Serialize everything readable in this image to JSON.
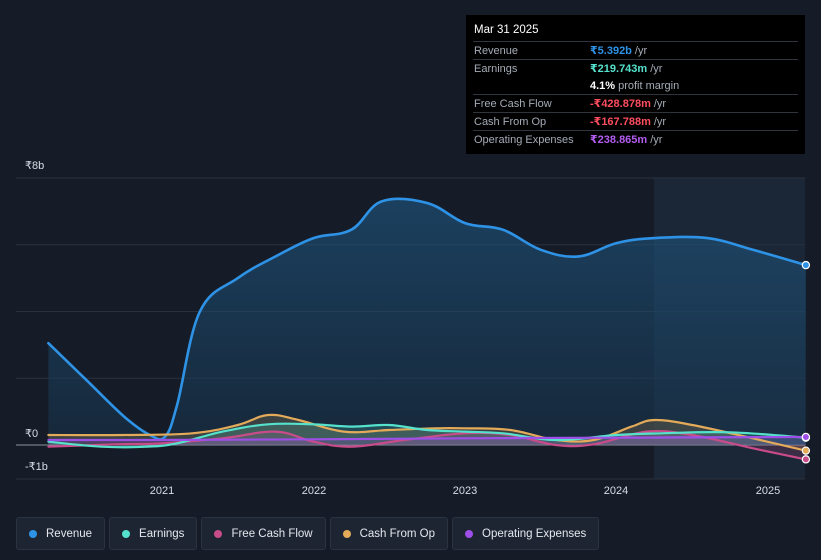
{
  "tooltip": {
    "date": "Mar 31 2025",
    "rows": [
      {
        "label": "Revenue",
        "value": "₹5.392b",
        "unit": "/yr"
      },
      {
        "label": "Earnings",
        "value": "₹219.743m",
        "unit": "/yr"
      },
      {
        "label": "",
        "value": "4.1%",
        "unit": "profit margin"
      },
      {
        "label": "Free Cash Flow",
        "value": "-₹428.878m",
        "unit": "/yr"
      },
      {
        "label": "Cash From Op",
        "value": "-₹167.788m",
        "unit": "/yr"
      },
      {
        "label": "Operating Expenses",
        "value": "₹238.865m",
        "unit": "/yr"
      }
    ]
  },
  "legend": [
    "Revenue",
    "Earnings",
    "Free Cash Flow",
    "Cash From Op",
    "Operating Expenses"
  ],
  "colors": {
    "revenue": "#2e93e6",
    "earnings": "#55e2cd",
    "fcf": "#c84b8a",
    "cfo": "#e3aa5a",
    "opex": "#9d4fe8"
  },
  "chart_data": {
    "type": "area",
    "ylim": [
      -1,
      8
    ],
    "y_tick_labels": [
      "₹8b",
      "₹0",
      "-₹1b"
    ],
    "x_tick_labels": [
      "2021",
      "2022",
      "2023",
      "2024",
      "2025"
    ],
    "x_unit": "year",
    "series": [
      {
        "name": "Revenue",
        "color": "#2e93e6",
        "points": [
          [
            2020.25,
            3.05
          ],
          [
            2020.5,
            1.95
          ],
          [
            2020.75,
            0.85
          ],
          [
            2020.92,
            0.3
          ],
          [
            2021.02,
            0.25
          ],
          [
            2021.1,
            1.2
          ],
          [
            2021.25,
            4.0
          ],
          [
            2021.5,
            5.0
          ],
          [
            2021.75,
            5.65
          ],
          [
            2022.0,
            6.2
          ],
          [
            2022.25,
            6.45
          ],
          [
            2022.45,
            7.3
          ],
          [
            2022.75,
            7.25
          ],
          [
            2023.0,
            6.65
          ],
          [
            2023.25,
            6.45
          ],
          [
            2023.5,
            5.85
          ],
          [
            2023.75,
            5.65
          ],
          [
            2024.0,
            6.05
          ],
          [
            2024.25,
            6.2
          ],
          [
            2024.6,
            6.2
          ],
          [
            2024.9,
            5.85
          ],
          [
            2025.25,
            5.39
          ]
        ]
      },
      {
        "name": "Earnings",
        "color": "#55e2cd",
        "points": [
          [
            2020.25,
            0.1
          ],
          [
            2020.6,
            -0.05
          ],
          [
            2020.9,
            -0.05
          ],
          [
            2021.1,
            0.05
          ],
          [
            2021.4,
            0.4
          ],
          [
            2021.7,
            0.62
          ],
          [
            2022.0,
            0.62
          ],
          [
            2022.25,
            0.55
          ],
          [
            2022.5,
            0.6
          ],
          [
            2022.75,
            0.45
          ],
          [
            2023.0,
            0.4
          ],
          [
            2023.25,
            0.35
          ],
          [
            2023.6,
            0.15
          ],
          [
            2024.0,
            0.3
          ],
          [
            2024.3,
            0.35
          ],
          [
            2024.75,
            0.38
          ],
          [
            2025.25,
            0.22
          ]
        ]
      },
      {
        "name": "Free Cash Flow",
        "color": "#c84b8a",
        "points": [
          [
            2020.25,
            -0.05
          ],
          [
            2020.7,
            0.02
          ],
          [
            2021.0,
            0.05
          ],
          [
            2021.4,
            0.2
          ],
          [
            2021.75,
            0.4
          ],
          [
            2022.0,
            0.1
          ],
          [
            2022.25,
            -0.05
          ],
          [
            2022.6,
            0.15
          ],
          [
            2023.0,
            0.35
          ],
          [
            2023.3,
            0.3
          ],
          [
            2023.6,
            0.0
          ],
          [
            2023.85,
            0.02
          ],
          [
            2024.2,
            0.4
          ],
          [
            2024.5,
            0.3
          ],
          [
            2024.9,
            -0.1
          ],
          [
            2025.25,
            -0.43
          ]
        ]
      },
      {
        "name": "Cash From Op",
        "color": "#e3aa5a",
        "points": [
          [
            2020.25,
            0.3
          ],
          [
            2020.75,
            0.3
          ],
          [
            2021.2,
            0.35
          ],
          [
            2021.5,
            0.6
          ],
          [
            2021.7,
            0.9
          ],
          [
            2021.9,
            0.75
          ],
          [
            2022.2,
            0.4
          ],
          [
            2022.5,
            0.45
          ],
          [
            2022.8,
            0.5
          ],
          [
            2023.0,
            0.5
          ],
          [
            2023.3,
            0.45
          ],
          [
            2023.6,
            0.15
          ],
          [
            2023.85,
            0.15
          ],
          [
            2024.1,
            0.55
          ],
          [
            2024.25,
            0.75
          ],
          [
            2024.5,
            0.6
          ],
          [
            2024.9,
            0.2
          ],
          [
            2025.25,
            -0.17
          ]
        ]
      },
      {
        "name": "Operating Expenses",
        "color": "#9d4fe8",
        "points": [
          [
            2020.25,
            0.15
          ],
          [
            2021.0,
            0.15
          ],
          [
            2022.0,
            0.17
          ],
          [
            2023.0,
            0.2
          ],
          [
            2024.0,
            0.22
          ],
          [
            2025.25,
            0.24
          ]
        ]
      }
    ]
  }
}
